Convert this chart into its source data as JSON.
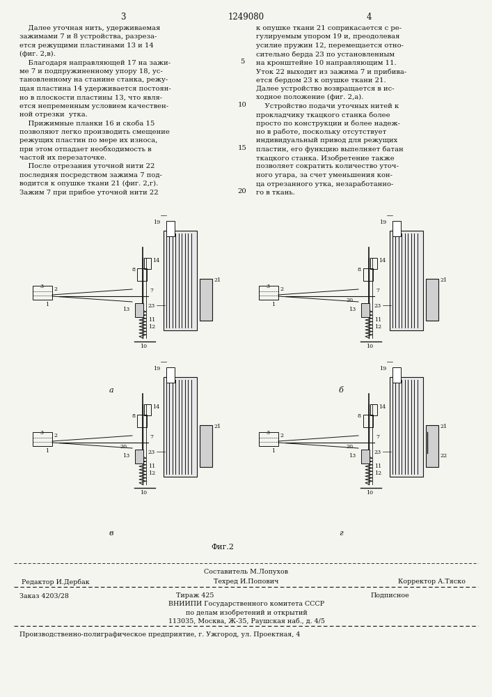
{
  "background_color": "#f5f5f0",
  "page_width": 7.07,
  "page_height": 10.0,
  "header": {
    "left_page_num": "3",
    "center_patent_num": "1249080",
    "right_page_num": "4"
  },
  "left_column_text": [
    "    Далее уточная нить, удерживаемая",
    "зажимами 7 и 8 устройства, разреза-",
    "ется режущими пластинами 13 и 14",
    "(фиг. 2,в).",
    "    Благодаря направляющей 17 на зажи-",
    "ме 7 и подпружиненному упору 18, ус-",
    "тановленному на станине станка, режу-",
    "щая пластина 14 удерживается постоян-",
    "но в плоскости пластины 13, что явля-",
    "ется непременным условием качествен-",
    "ной отрезки  утка.",
    "    Прижимные планки 16 и скоба 15",
    "позволяют легко производить смещение",
    "режущих пластин по мере их износа,",
    "при этом отпадает необходимость в",
    "частой их перезаточке.",
    "    После отрезания уточной нити 22",
    "последняя посредством зажима 7 под-",
    "водится к опушке ткани 21 (фиг. 2,г).",
    "Зажим 7 при прибое уточной нити 22"
  ],
  "right_column_text": [
    "к опушке ткани 21 соприкасается с ре-",
    "гулируемым упором 19 и, преодолевая",
    "усилие пружин 12, перемещается отно-",
    "сительно берда 23 по установленным",
    "на кронштейне 10 направляющим 11.",
    "Уток 22 выходит из зажима 7 и прибива-",
    "ется бердом 23 к опушке ткани 21.",
    "Далее устройство возвращается в ис-",
    "ходное положение (фиг. 2,а).",
    "    Устройство подачи уточных нитей к",
    "прокладчику ткацкого станка более",
    "просто по конструкции и более надеж-",
    "но в работе, поскольку отсутствует",
    "индивидуальный привод для режущих",
    "пластин, его функцию выпелняет батан",
    "ткацкого станка. Изобретение также",
    "позволяет сократить количество уточ-",
    "ного угара, за счет уменьшения кон-",
    "ца отрезанного утка, незаработанно-",
    "го в ткань."
  ],
  "line_numbers_idx": [
    4,
    9,
    14,
    19
  ],
  "line_numbers_val": [
    "5",
    "10",
    "15",
    "20"
  ],
  "fig2_caption": "Фиг.2",
  "footer_sestavitel": "Составитель М.Лопухов",
  "footer_editor": "Редактор И.Дербак",
  "footer_tekhred": "Техред И.Попович",
  "footer_korrektor": "Корректор А.Тяско",
  "footer_zakaz": "Заказ 4203/28",
  "footer_tirazh": "Тираж 425",
  "footer_podpisnoe": "Подписное",
  "footer_vniipи": "ВНИИПИ Государственного комитета СССР",
  "footer_po_delam": "по делам изобретений и открытий",
  "footer_address": "113035, Москва, Ж-35, Раушская наб., д. 4/5",
  "footer_predpriyatie": "Производственно-полиграфическое предприятие, г. Ужгород, ул. Проектная, 4",
  "text_color": "#111111",
  "line_color": "#111111",
  "font_size_body": 7.2,
  "font_size_header": 8.5,
  "font_size_footer": 6.8,
  "font_size_label": 5.8
}
